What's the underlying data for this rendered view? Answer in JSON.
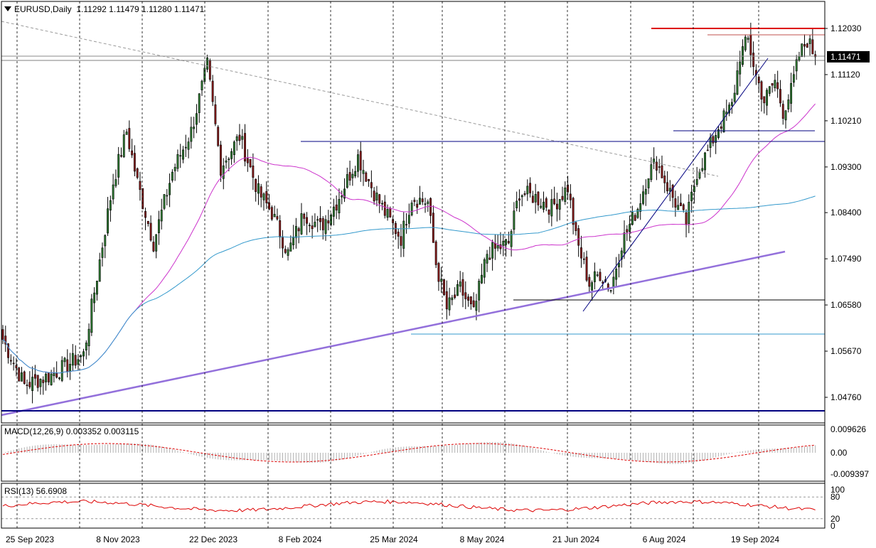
{
  "header": {
    "symbol": "EURUSD,Daily",
    "ohlc": "1.11292 1.11479 1.11280 1.11471"
  },
  "colors": {
    "bull": "#2e7d32",
    "bear": "#8b1a1a",
    "ma_fast": "#cc33cc",
    "ma_slow": "#3399cc",
    "trend_purple": "#9370db",
    "level_blue": "#000080",
    "resistance_red": "#dd0000",
    "price_marker_bg": "#000000"
  },
  "chart_data": [
    {
      "type": "candlestick",
      "title": "EURUSD,Daily",
      "x_ticks": [
        "25 Sep 2023",
        "8 Nov 2023",
        "22 Dec 2023",
        "8 Feb 2024",
        "25 Mar 2024",
        "8 May 2024",
        "21 Jun 2024",
        "6 Aug 2024",
        "19 Sep 2024"
      ],
      "y_ticks": [
        1.1203,
        1.1112,
        1.1021,
        1.093,
        1.084,
        1.0749,
        1.0658,
        1.0567,
        1.0476
      ],
      "y_ticks_label": [
        "1.12030",
        "1.11120",
        "1.10210",
        "1.09300",
        "1.08400",
        "1.07490",
        "1.06580",
        "1.05670",
        "1.04760"
      ],
      "ylim": [
        1.043,
        1.123
      ],
      "last_price": 1.11471,
      "last_price_label": "1.11471",
      "close_anchors": [
        [
          0,
          1.059
        ],
        [
          8,
          1.05
        ],
        [
          18,
          1.052
        ],
        [
          30,
          1.056
        ],
        [
          41,
          1.09
        ],
        [
          46,
          1.1
        ],
        [
          50,
          1.09
        ],
        [
          56,
          1.078
        ],
        [
          63,
          1.092
        ],
        [
          70,
          1.1
        ],
        [
          76,
          1.113
        ],
        [
          81,
          1.093
        ],
        [
          88,
          1.099
        ],
        [
          95,
          1.088
        ],
        [
          100,
          1.084
        ],
        [
          106,
          1.076
        ],
        [
          112,
          1.084
        ],
        [
          118,
          1.081
        ],
        [
          124,
          1.086
        ],
        [
          132,
          1.095
        ],
        [
          138,
          1.088
        ],
        [
          142,
          1.084
        ],
        [
          148,
          1.079
        ],
        [
          152,
          1.087
        ],
        [
          158,
          1.086
        ],
        [
          161,
          1.074
        ],
        [
          165,
          1.065
        ],
        [
          170,
          1.069
        ],
        [
          175,
          1.064
        ],
        [
          180,
          1.076
        ],
        [
          188,
          1.078
        ],
        [
          192,
          1.088
        ],
        [
          198,
          1.087
        ],
        [
          204,
          1.085
        ],
        [
          210,
          1.089
        ],
        [
          213,
          1.079
        ],
        [
          218,
          1.07
        ],
        [
          222,
          1.072
        ],
        [
          226,
          1.069
        ],
        [
          230,
          1.078
        ],
        [
          236,
          1.085
        ],
        [
          240,
          1.092
        ],
        [
          243,
          1.094
        ],
        [
          248,
          1.088
        ],
        [
          254,
          1.082
        ],
        [
          258,
          1.092
        ],
        [
          262,
          1.096
        ],
        [
          266,
          1.101
        ],
        [
          271,
          1.105
        ],
        [
          274,
          1.115
        ],
        [
          277,
          1.118
        ],
        [
          280,
          1.111
        ],
        [
          283,
          1.106
        ],
        [
          287,
          1.11
        ],
        [
          290,
          1.104
        ],
        [
          293,
          1.108
        ],
        [
          296,
          1.115
        ],
        [
          299,
          1.118
        ],
        [
          302,
          1.1147
        ]
      ]
    },
    {
      "type": "line",
      "title": "MACD(12,26,9) 0.003352 0.003115",
      "y_ticks_label": [
        "0.009626",
        "0.00",
        "-0.009397"
      ]
    },
    {
      "type": "line",
      "title": "RSI(13) 56.6908",
      "y_ticks_label": [
        "100",
        "80",
        "20",
        "0"
      ]
    }
  ]
}
